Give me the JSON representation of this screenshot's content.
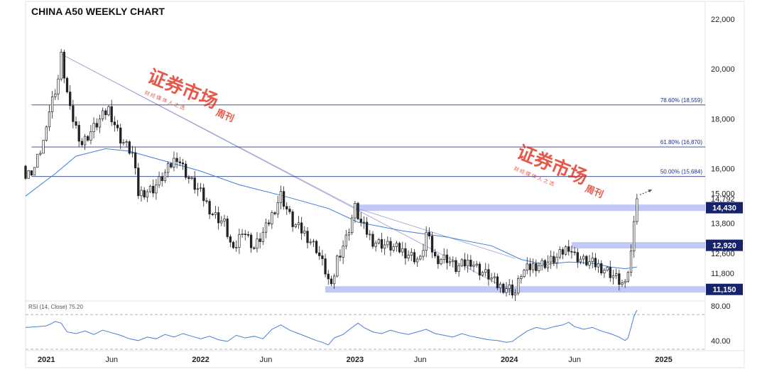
{
  "title": "CHINA A50 WEEKLY CHART",
  "watermark": {
    "main": "证券市场",
    "side": "周刊",
    "sub": "财 经 媒 体 人 之 选"
  },
  "colors": {
    "up": "#222222",
    "down": "#222222",
    "fib_line": "#2b3a8f",
    "zone_fill": "#aeb6f2",
    "tag_bg": "#14236b",
    "ma": "#3e7fd6",
    "rsi": "#4a7fd1",
    "channel": "#9aa0d4"
  },
  "chart_data": [
    {
      "type": "line",
      "subtype": "candlestick",
      "title": "CHINA A50 WEEKLY CHART",
      "ylim": [
        10800,
        22600
      ],
      "y_ticks": [
        "22,000",
        "20,000",
        "18,000",
        "16,000",
        "15,000",
        "14,792",
        "13,800",
        "12,600",
        "11,800"
      ],
      "y_tick_values": [
        22000,
        20000,
        18000,
        16000,
        15000,
        14792,
        13800,
        12600,
        11800
      ],
      "x_ticks": [
        "2021",
        "Jun",
        "2022",
        "Jun",
        "2023",
        "Jun",
        "2024",
        "Jun",
        "2025"
      ],
      "x_tick_weeks": [
        0,
        22,
        52,
        74,
        104,
        126,
        156,
        178,
        208
      ],
      "xlim_weeks": [
        -7,
        222
      ],
      "price_tags": [
        {
          "label": "14,430",
          "value": 14430
        },
        {
          "label": "12,920",
          "value": 12920
        },
        {
          "label": "11,150",
          "value": 11150
        }
      ],
      "support_resistance_zones": [
        {
          "value": 14430,
          "from_week": 104
        },
        {
          "value": 12920,
          "from_week": 177
        },
        {
          "value": 11150,
          "from_week": 94
        }
      ],
      "fibonacci_levels": [
        {
          "label": "78.60% (18,559)",
          "value": 18559
        },
        {
          "label": "61.80% (16,870)",
          "value": 16870
        },
        {
          "label": "50.00% (15,684)",
          "value": 15684
        }
      ],
      "weekly_close_path": [
        [
          -7,
          16100
        ],
        [
          -4,
          16500
        ],
        [
          0,
          17900
        ],
        [
          4,
          19600
        ],
        [
          5,
          20500
        ],
        [
          8,
          18300
        ],
        [
          12,
          17000
        ],
        [
          17,
          17800
        ],
        [
          21,
          18400
        ],
        [
          25,
          17200
        ],
        [
          29,
          16600
        ],
        [
          31,
          15000
        ],
        [
          36,
          15200
        ],
        [
          40,
          15800
        ],
        [
          44,
          16500
        ],
        [
          48,
          15600
        ],
        [
          52,
          15000
        ],
        [
          56,
          14200
        ],
        [
          60,
          13800
        ],
        [
          63,
          12600
        ],
        [
          66,
          13600
        ],
        [
          70,
          12800
        ],
        [
          74,
          13600
        ],
        [
          79,
          14950
        ],
        [
          83,
          13800
        ],
        [
          87,
          13400
        ],
        [
          91,
          12800
        ],
        [
          94,
          11900
        ],
        [
          96,
          11150
        ],
        [
          98,
          12400
        ],
        [
          101,
          13200
        ],
        [
          104,
          14430
        ],
        [
          106,
          13800
        ],
        [
          110,
          13100
        ],
        [
          115,
          12900
        ],
        [
          120,
          12700
        ],
        [
          123,
          12500
        ],
        [
          126,
          12300
        ],
        [
          128,
          13400
        ],
        [
          131,
          12400
        ],
        [
          135,
          12400
        ],
        [
          138,
          12000
        ],
        [
          143,
          12300
        ],
        [
          146,
          11900
        ],
        [
          149,
          11700
        ],
        [
          152,
          11300
        ],
        [
          156,
          11200
        ],
        [
          158,
          11000
        ],
        [
          160,
          11800
        ],
        [
          164,
          12100
        ],
        [
          168,
          12200
        ],
        [
          172,
          12400
        ],
        [
          176,
          12900
        ],
        [
          178,
          12500
        ],
        [
          181,
          12300
        ],
        [
          186,
          12100
        ],
        [
          189,
          11900
        ],
        [
          192,
          11600
        ],
        [
          195,
          11250
        ],
        [
          197,
          12600
        ],
        [
          198,
          14100
        ],
        [
          199,
          14792
        ]
      ],
      "moving_average_path": [
        [
          -7,
          14900
        ],
        [
          3,
          15800
        ],
        [
          10,
          16500
        ],
        [
          20,
          16800
        ],
        [
          28,
          16700
        ],
        [
          40,
          16300
        ],
        [
          52,
          15900
        ],
        [
          65,
          15350
        ],
        [
          80,
          14900
        ],
        [
          95,
          14400
        ],
        [
          105,
          13850
        ],
        [
          120,
          13500
        ],
        [
          135,
          13250
        ],
        [
          150,
          12900
        ],
        [
          160,
          12350
        ],
        [
          168,
          12150
        ],
        [
          176,
          12250
        ],
        [
          184,
          12200
        ],
        [
          190,
          12050
        ],
        [
          195,
          11980
        ],
        [
          199,
          12050
        ]
      ],
      "descending_channel": {
        "from": [
          5,
          20600
        ],
        "to": [
          158,
          11000
        ],
        "upper_from": [
          5,
          20600
        ],
        "upper_to": [
          104,
          14430
        ]
      },
      "forecast_arrow": {
        "from": [
          200,
          14950
        ],
        "to": [
          204,
          15150
        ]
      }
    },
    {
      "type": "line",
      "title": "RSI (14, Close) 75.20",
      "ylim": [
        30,
        84
      ],
      "y_ticks": [
        "80.00",
        "40.00"
      ],
      "y_tick_values": [
        80,
        40
      ],
      "reference_levels": [
        70,
        30
      ],
      "last_value": 75.2,
      "series": [
        {
          "values": [
            [
              -7,
              55
            ],
            [
              -3,
              56
            ],
            [
              0,
              57
            ],
            [
              2,
              60
            ],
            [
              3,
              62
            ],
            [
              5,
              60
            ],
            [
              7,
              50
            ],
            [
              10,
              48
            ],
            [
              13,
              51
            ],
            [
              16,
              47
            ],
            [
              19,
              52
            ],
            [
              22,
              49
            ],
            [
              25,
              46
            ],
            [
              28,
              42
            ],
            [
              31,
              40
            ],
            [
              34,
              44
            ],
            [
              37,
              42
            ],
            [
              40,
              47
            ],
            [
              43,
              44
            ],
            [
              46,
              48
            ],
            [
              49,
              45
            ],
            [
              52,
              42
            ],
            [
              55,
              45
            ],
            [
              58,
              41
            ],
            [
              61,
              39
            ],
            [
              64,
              46
            ],
            [
              67,
              43
            ],
            [
              70,
              45
            ],
            [
              73,
              42
            ],
            [
              76,
              53
            ],
            [
              79,
              58
            ],
            [
              82,
              52
            ],
            [
              85,
              48
            ],
            [
              88,
              44
            ],
            [
              91,
              40
            ],
            [
              93,
              38
            ],
            [
              95,
              35
            ],
            [
              97,
              43
            ],
            [
              100,
              47
            ],
            [
              103,
              55
            ],
            [
              105,
              60
            ],
            [
              107,
              55
            ],
            [
              110,
              50
            ],
            [
              113,
              48
            ],
            [
              116,
              52
            ],
            [
              119,
              49
            ],
            [
              122,
              47
            ],
            [
              125,
              50
            ],
            [
              128,
              53
            ],
            [
              131,
              48
            ],
            [
              134,
              46
            ],
            [
              137,
              44
            ],
            [
              140,
              48
            ],
            [
              143,
              45
            ],
            [
              146,
              43
            ],
            [
              149,
              41
            ],
            [
              152,
              40
            ],
            [
              155,
              38
            ],
            [
              157,
              39
            ],
            [
              159,
              44
            ],
            [
              162,
              51
            ],
            [
              165,
              55
            ],
            [
              168,
              53
            ],
            [
              171,
              56
            ],
            [
              174,
              58
            ],
            [
              176,
              61
            ],
            [
              178,
              56
            ],
            [
              181,
              53
            ],
            [
              184,
              55
            ],
            [
              187,
              51
            ],
            [
              190,
              48
            ],
            [
              193,
              44
            ],
            [
              195,
              40
            ],
            [
              196,
              43
            ],
            [
              197,
              55
            ],
            [
              198,
              68
            ],
            [
              199,
              75.2
            ]
          ]
        }
      ]
    }
  ]
}
